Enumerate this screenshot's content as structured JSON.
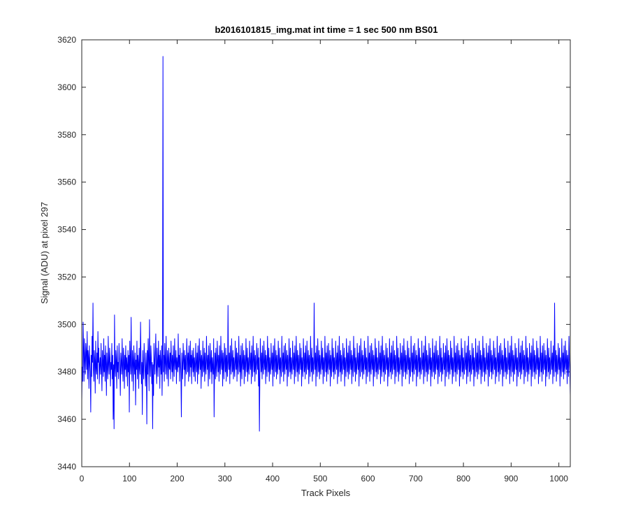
{
  "chart_data": {
    "type": "line",
    "title": "b2016101815_img.mat int time = 1 sec  500 nm BS01",
    "xlabel": "Track Pixels",
    "ylabel": "Signal (ADU) at pixel 297",
    "xlim": [
      0,
      1024
    ],
    "ylim": [
      3440,
      3620
    ],
    "xticks": [
      0,
      100,
      200,
      300,
      400,
      500,
      600,
      700,
      800,
      900,
      1000
    ],
    "yticks": [
      3440,
      3460,
      3480,
      3500,
      3520,
      3540,
      3560,
      3580,
      3600,
      3620
    ],
    "grid": false,
    "legend": "none",
    "color": "#0000ff",
    "series": [
      {
        "x_start": 0,
        "x_step": 1,
        "values": [
          3468,
          3482,
          3476,
          3501,
          3489,
          3476,
          3494,
          3485,
          3479,
          3492,
          3488,
          3481,
          3497,
          3477,
          3489,
          3486,
          3473,
          3491,
          3484,
          3480,
          3463,
          3487,
          3478,
          3495,
          3484,
          3509,
          3481,
          3476,
          3489,
          3485,
          3471,
          3493,
          3482,
          3479,
          3488,
          3477,
          3497,
          3484,
          3490,
          3475,
          3483,
          3486,
          3479,
          3492,
          3481,
          3472,
          3489,
          3484,
          3478,
          3494,
          3480,
          3487,
          3476,
          3491,
          3484,
          3470,
          3488,
          3482,
          3477,
          3495,
          3483,
          3479,
          3490,
          3486,
          3474,
          3484,
          3481,
          3492,
          3477,
          3487,
          3460,
          3483,
          3456,
          3504,
          3482,
          3478,
          3489,
          3485,
          3473,
          3491,
          3480,
          3484,
          3477,
          3492,
          3486,
          3481,
          3470,
          3488,
          3484,
          3479,
          3494,
          3482,
          3476,
          3490,
          3485,
          3473,
          3487,
          3481,
          3491,
          3478,
          3486,
          3483,
          3474,
          3489,
          3480,
          3487,
          3463,
          3493,
          3484,
          3479,
          3503,
          3482,
          3476,
          3489,
          3485,
          3472,
          3491,
          3483,
          3479,
          3488,
          3466,
          3485,
          3481,
          3493,
          3477,
          3487,
          3484,
          3473,
          3490,
          3482,
          3479,
          3501,
          3486,
          3475,
          3484,
          3462,
          3489,
          3481,
          3477,
          3492,
          3486,
          3480,
          3474,
          3488,
          3483,
          3458,
          3489,
          3479,
          3494,
          3485,
          3472,
          3502,
          3483,
          3478,
          3491,
          3486,
          3475,
          3484,
          3456,
          3483,
          3470,
          3492,
          3485,
          3479,
          3488,
          3496,
          3481,
          3475,
          3490,
          3484,
          3478,
          3493,
          3482,
          3487,
          3473,
          3489,
          3484,
          3479,
          3491,
          3470,
          3485,
          3613,
          3480,
          3487,
          3476,
          3492,
          3484,
          3479,
          3495,
          3483,
          3477,
          3489,
          3486,
          3474,
          3490,
          3482,
          3481,
          3488,
          3477,
          3493,
          3485,
          3480,
          3487,
          3476,
          3491,
          3483,
          3478,
          3494,
          3484,
          3481,
          3489,
          3475,
          3486,
          3483,
          3480,
          3496,
          3482,
          3487,
          3476,
          3490,
          3484,
          3479,
          3461,
          3488,
          3483,
          3477,
          3492,
          3485,
          3481,
          3489,
          3474,
          3487,
          3482,
          3479,
          3494,
          3486,
          3480,
          3488,
          3476,
          3491,
          3484,
          3478,
          3493,
          3482,
          3487,
          3475,
          3489,
          3485,
          3480,
          3490,
          3478,
          3486,
          3483,
          3476,
          3492,
          3484,
          3480,
          3488,
          3475,
          3491,
          3482,
          3479,
          3494,
          3485,
          3481,
          3489,
          3473,
          3487,
          3484,
          3478,
          3493,
          3483,
          3480,
          3490,
          3476,
          3488,
          3482,
          3479,
          3495,
          3485,
          3481,
          3487,
          3474,
          3491,
          3483,
          3477,
          3492,
          3484,
          3480,
          3489,
          3475,
          3486,
          3482,
          3479,
          3494,
          3461,
          3481,
          3488,
          3477,
          3490,
          3483,
          3478,
          3493,
          3485,
          3480,
          3487,
          3476,
          3491,
          3482,
          3479,
          3495,
          3484,
          3481,
          3489,
          3474,
          3488,
          3483,
          3477,
          3492,
          3485,
          3480,
          3490,
          3476,
          3487,
          3482,
          3478,
          3508,
          3484,
          3481,
          3488,
          3475,
          3491,
          3483,
          3479,
          3494,
          3485,
          3480,
          3489,
          3477,
          3486,
          3482,
          3478,
          3493,
          3484,
          3481,
          3490,
          3476,
          3488,
          3483,
          3479,
          3495,
          3485,
          3480,
          3487,
          3474,
          3491,
          3482,
          3477,
          3492,
          3484,
          3481,
          3489,
          3475,
          3487,
          3483,
          3478,
          3494,
          3485,
          3480,
          3490,
          3476,
          3486,
          3482,
          3479,
          3493,
          3484,
          3481,
          3488,
          3475,
          3491,
          3483,
          3478,
          3495,
          3485,
          3480,
          3489,
          3476,
          3487,
          3482,
          3479,
          3492,
          3484,
          3481,
          3490,
          3474,
          3486,
          3455,
          3478,
          3494,
          3485,
          3480,
          3488,
          3477,
          3491,
          3482,
          3479,
          3493,
          3484,
          3481,
          3489,
          3475,
          3487,
          3483,
          3478,
          3495,
          3485,
          3480,
          3490,
          3476,
          3486,
          3482,
          3479,
          3492,
          3484,
          3481,
          3488,
          3474,
          3491,
          3483,
          3478,
          3494,
          3485,
          3480,
          3489,
          3477,
          3487,
          3482,
          3479,
          3493,
          3484,
          3481,
          3490,
          3475,
          3486,
          3483,
          3478,
          3495,
          3485,
          3480,
          3488,
          3476,
          3491,
          3482,
          3479,
          3492,
          3484,
          3481,
          3489,
          3474,
          3487,
          3483,
          3478,
          3494,
          3485,
          3480,
          3490,
          3477,
          3486,
          3482,
          3479,
          3493,
          3484,
          3481,
          3488,
          3475,
          3491,
          3483,
          3478,
          3495,
          3485,
          3480,
          3489,
          3476,
          3487,
          3482,
          3479,
          3492,
          3484,
          3481,
          3490,
          3474,
          3486,
          3483,
          3478,
          3494,
          3485,
          3480,
          3488,
          3477,
          3491,
          3482,
          3479,
          3493,
          3484,
          3481,
          3489,
          3475,
          3487,
          3483,
          3478,
          3495,
          3485,
          3480,
          3490,
          3476,
          3486,
          3482,
          3479,
          3509,
          3484,
          3481,
          3488,
          3474,
          3491,
          3483,
          3478,
          3494,
          3485,
          3480,
          3489,
          3477,
          3487,
          3482,
          3479,
          3493,
          3484,
          3481,
          3490,
          3475,
          3486,
          3483,
          3478,
          3495,
          3485,
          3480,
          3488,
          3476,
          3491,
          3482,
          3479,
          3492,
          3484,
          3481,
          3489,
          3474,
          3487,
          3483,
          3478,
          3494,
          3485,
          3480,
          3490,
          3477,
          3486,
          3482,
          3479,
          3493,
          3484,
          3481,
          3488,
          3475,
          3491,
          3483,
          3478,
          3495,
          3485,
          3480,
          3489,
          3476,
          3487,
          3482,
          3479,
          3492,
          3484,
          3481,
          3490,
          3474,
          3486,
          3483,
          3478,
          3494,
          3485,
          3480,
          3488,
          3477,
          3491,
          3482,
          3479,
          3493,
          3484,
          3481,
          3489,
          3475,
          3487,
          3483,
          3478,
          3495,
          3485,
          3480,
          3490,
          3476,
          3486,
          3482,
          3479,
          3492,
          3484,
          3481,
          3488,
          3474,
          3491,
          3483,
          3478,
          3494,
          3485,
          3480,
          3489,
          3477,
          3487,
          3482,
          3479,
          3493,
          3484,
          3481,
          3490,
          3475,
          3486,
          3483,
          3478,
          3495,
          3485,
          3480,
          3488,
          3476,
          3491,
          3482,
          3479,
          3492,
          3484,
          3481,
          3489,
          3474,
          3487,
          3483,
          3478,
          3494,
          3485,
          3480,
          3490,
          3477,
          3486,
          3482,
          3479,
          3493,
          3484,
          3481,
          3488,
          3475,
          3491,
          3483,
          3478,
          3495,
          3485,
          3480,
          3489,
          3476,
          3487,
          3482,
          3479,
          3492,
          3484,
          3481,
          3490,
          3474,
          3486,
          3483,
          3478,
          3494,
          3485,
          3480,
          3488,
          3477,
          3491,
          3482,
          3479,
          3493,
          3484,
          3481,
          3489,
          3475,
          3487,
          3483,
          3478,
          3495,
          3485,
          3480,
          3490,
          3476,
          3486,
          3482,
          3479,
          3492,
          3484,
          3481,
          3488,
          3474,
          3491,
          3483,
          3478,
          3494,
          3485,
          3480,
          3489,
          3477,
          3487,
          3482,
          3479,
          3493,
          3484,
          3481,
          3490,
          3475,
          3486,
          3483,
          3478,
          3495,
          3485,
          3480,
          3488,
          3476,
          3491,
          3482,
          3479,
          3492,
          3484,
          3481,
          3489,
          3474,
          3487,
          3483,
          3478,
          3494,
          3485,
          3480,
          3490,
          3477,
          3486,
          3482,
          3479,
          3493,
          3484,
          3481,
          3488,
          3475,
          3491,
          3483,
          3478,
          3495,
          3485,
          3480,
          3489,
          3476,
          3487,
          3482,
          3479,
          3492,
          3484,
          3481,
          3490,
          3474,
          3486,
          3483,
          3478,
          3494,
          3485,
          3480,
          3488,
          3477,
          3491,
          3482,
          3479,
          3493,
          3484,
          3481,
          3489,
          3475,
          3487,
          3483,
          3478,
          3495,
          3485,
          3480,
          3490,
          3476,
          3486,
          3482,
          3479,
          3492,
          3484,
          3481,
          3488,
          3474,
          3491,
          3483,
          3478,
          3494,
          3485,
          3480,
          3489,
          3477,
          3487,
          3482,
          3479,
          3493,
          3484,
          3481,
          3490,
          3475,
          3486,
          3483,
          3478,
          3495,
          3485,
          3480,
          3488,
          3476,
          3491,
          3482,
          3479,
          3492,
          3484,
          3481,
          3489,
          3474,
          3487,
          3483,
          3478,
          3494,
          3485,
          3480,
          3490,
          3477,
          3486,
          3482,
          3479,
          3493,
          3484,
          3481,
          3488,
          3475,
          3491,
          3483,
          3478,
          3495,
          3485,
          3480,
          3489,
          3476,
          3487,
          3482,
          3479,
          3492,
          3484,
          3481,
          3490,
          3474,
          3486,
          3483,
          3478,
          3494,
          3485,
          3480,
          3488,
          3477,
          3491,
          3482,
          3479,
          3493,
          3484,
          3481,
          3489,
          3475,
          3487,
          3483,
          3478,
          3495,
          3485,
          3480,
          3490,
          3476,
          3486,
          3482,
          3479,
          3492,
          3484,
          3481,
          3488,
          3474,
          3491,
          3483,
          3478,
          3494,
          3485,
          3480,
          3489,
          3477,
          3487,
          3482,
          3479,
          3493,
          3484,
          3481,
          3490,
          3475,
          3486,
          3483,
          3478,
          3495,
          3485,
          3480,
          3488,
          3476,
          3491,
          3482,
          3479,
          3492,
          3484,
          3481,
          3489,
          3474,
          3487,
          3483,
          3478,
          3494,
          3485,
          3480,
          3490,
          3477,
          3486,
          3482,
          3479,
          3493,
          3484,
          3481,
          3488,
          3475,
          3491,
          3483,
          3478,
          3495,
          3485,
          3480,
          3489,
          3476,
          3487,
          3482,
          3479,
          3492,
          3484,
          3481,
          3490,
          3474,
          3486,
          3483,
          3478,
          3494,
          3485,
          3480,
          3488,
          3477,
          3491,
          3482,
          3479,
          3493,
          3484,
          3481,
          3489,
          3475,
          3487,
          3483,
          3478,
          3495,
          3485,
          3480,
          3490,
          3476,
          3486,
          3482,
          3479,
          3492,
          3484,
          3481,
          3488,
          3474,
          3491,
          3483,
          3478,
          3494,
          3485,
          3480,
          3489,
          3477,
          3487,
          3482,
          3479,
          3493,
          3484,
          3481,
          3490,
          3475,
          3486,
          3483,
          3478,
          3495,
          3485,
          3480,
          3488,
          3476,
          3491,
          3482,
          3479,
          3492,
          3484,
          3481,
          3489,
          3474,
          3487,
          3483,
          3478,
          3494,
          3485,
          3480,
          3490,
          3477,
          3486,
          3482,
          3479,
          3493,
          3484,
          3481,
          3488,
          3475,
          3491,
          3483,
          3478,
          3509,
          3485,
          3480,
          3489,
          3476,
          3487,
          3482,
          3479,
          3492,
          3484,
          3481,
          3490,
          3474,
          3486,
          3483,
          3478,
          3494,
          3485,
          3480,
          3488,
          3477,
          3491,
          3482,
          3479,
          3493,
          3484,
          3481,
          3489,
          3475,
          3487,
          3483,
          3478,
          3495,
          3485,
          3480,
          3470
        ]
      }
    ]
  }
}
